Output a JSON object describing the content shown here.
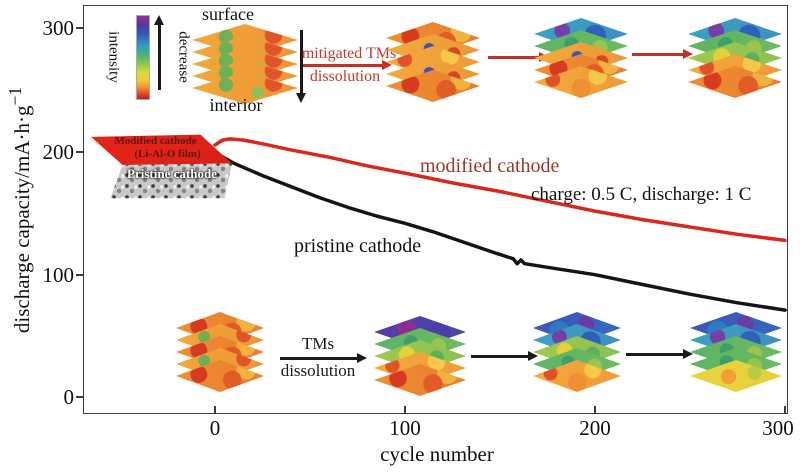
{
  "chart_data": {
    "type": "line",
    "title": "",
    "xlabel": "cycle number",
    "ylabel": "discharge capacity/mA·h·g⁻¹",
    "ylabel_parts": {
      "main": "discharge capacity/mA·h·g",
      "sup": "−1"
    },
    "xticks": [
      "0",
      "100",
      "200",
      "300"
    ],
    "yticks": [
      "0",
      "100",
      "200",
      "300"
    ],
    "xlim": [
      -70,
      303
    ],
    "ylim": [
      -15,
      320
    ],
    "grid": false,
    "legend_position": "inline-text-labels",
    "annotation": "charge: 0.5 C, discharge: 1 C",
    "series": [
      {
        "name": "modified cathode",
        "color": "#d6281c",
        "label_color": "#993a28",
        "x": [
          0,
          4,
          8,
          15,
          25,
          40,
          60,
          80,
          100,
          125,
          150,
          175,
          200,
          225,
          250,
          275,
          300
        ],
        "y": [
          206,
          210,
          211,
          210,
          207,
          202,
          196,
          189,
          183,
          175,
          168,
          160,
          152,
          145,
          139,
          133,
          128
        ]
      },
      {
        "name": "pristine cathode",
        "color": "#151515",
        "label_color": "#111111",
        "x": [
          2,
          10,
          25,
          40,
          55,
          70,
          85,
          100,
          115,
          130,
          145,
          157,
          159,
          161,
          163,
          175,
          200,
          225,
          250,
          275,
          300
        ],
        "y": [
          198,
          191,
          181,
          172,
          163,
          155,
          148,
          142,
          135,
          127,
          119,
          113,
          109,
          112,
          109,
          106,
          100,
          92,
          84,
          77,
          71
        ]
      }
    ]
  },
  "colorbar": {
    "label": "intensity",
    "arrow_label": "decrease",
    "gradient_top_to_bottom": [
      "#8e2f96",
      "#2f64b8",
      "#4bb86a",
      "#d8dc3c",
      "#f29130",
      "#c01e18"
    ]
  },
  "schematic": {
    "surface_label": "surface",
    "interior_label": "interior",
    "top_process": {
      "line1": "mitigated TMs",
      "line2": "dissolution",
      "color": "#c23b2a"
    },
    "bottom_process": {
      "line1": "TMs",
      "line2": "dissolution"
    },
    "stacks": {
      "top_1": [
        "org",
        "org",
        "org",
        "org",
        "org"
      ],
      "top_2": [
        "or2",
        "orb",
        "or",
        "orb",
        "or2"
      ],
      "top_3": [
        "teal",
        "green",
        "orb",
        "or2",
        "or"
      ],
      "top_4": [
        "teal",
        "green",
        "gy",
        "or",
        "or2"
      ],
      "bottom_1": [
        "or2",
        "org",
        "or2",
        "org",
        "or2"
      ],
      "bottom_2": [
        "pur",
        "green",
        "gy",
        "or",
        "or2"
      ],
      "bottom_3": [
        "blue",
        "teal",
        "gy",
        "green",
        "or"
      ],
      "bottom_4": [
        "blue",
        "teal",
        "green",
        "green",
        "yel"
      ]
    }
  },
  "inset": {
    "line1": "Modified cathode",
    "line2": "(Li-Al-O film)",
    "line3": "Pristine cathode"
  }
}
